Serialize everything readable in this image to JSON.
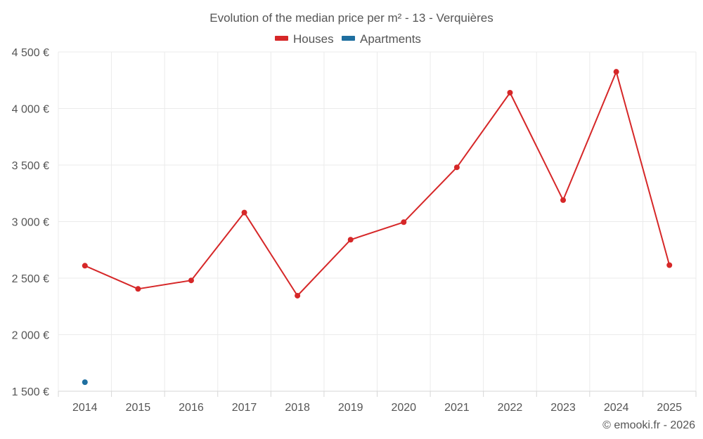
{
  "chart_data": {
    "type": "line",
    "title": "Evolution of the median price per m² - 13 - Verquières",
    "categories": [
      "2014",
      "2015",
      "2016",
      "2017",
      "2018",
      "2019",
      "2020",
      "2021",
      "2022",
      "2023",
      "2024",
      "2025"
    ],
    "series": [
      {
        "name": "Houses",
        "color": "#d62728",
        "values": [
          2610,
          2405,
          2480,
          3080,
          2345,
          2840,
          2995,
          3480,
          4140,
          3190,
          4325,
          2615
        ]
      },
      {
        "name": "Apartments",
        "color": "#1f6fa0",
        "values": [
          1580,
          null,
          null,
          null,
          null,
          null,
          null,
          null,
          null,
          null,
          null,
          null
        ]
      }
    ],
    "yticks": [
      "1 500 €",
      "2 000 €",
      "2 500 €",
      "3 000 €",
      "3 500 €",
      "4 000 €",
      "4 500 €"
    ],
    "ytick_values": [
      1500,
      2000,
      2500,
      3000,
      3500,
      4000,
      4500
    ],
    "ylim": [
      1500,
      4500
    ],
    "xlabel": "",
    "ylabel": "",
    "grid": true,
    "legend_position": "top-center"
  },
  "footer": {
    "credit": "© emooki.fr - 2026"
  }
}
